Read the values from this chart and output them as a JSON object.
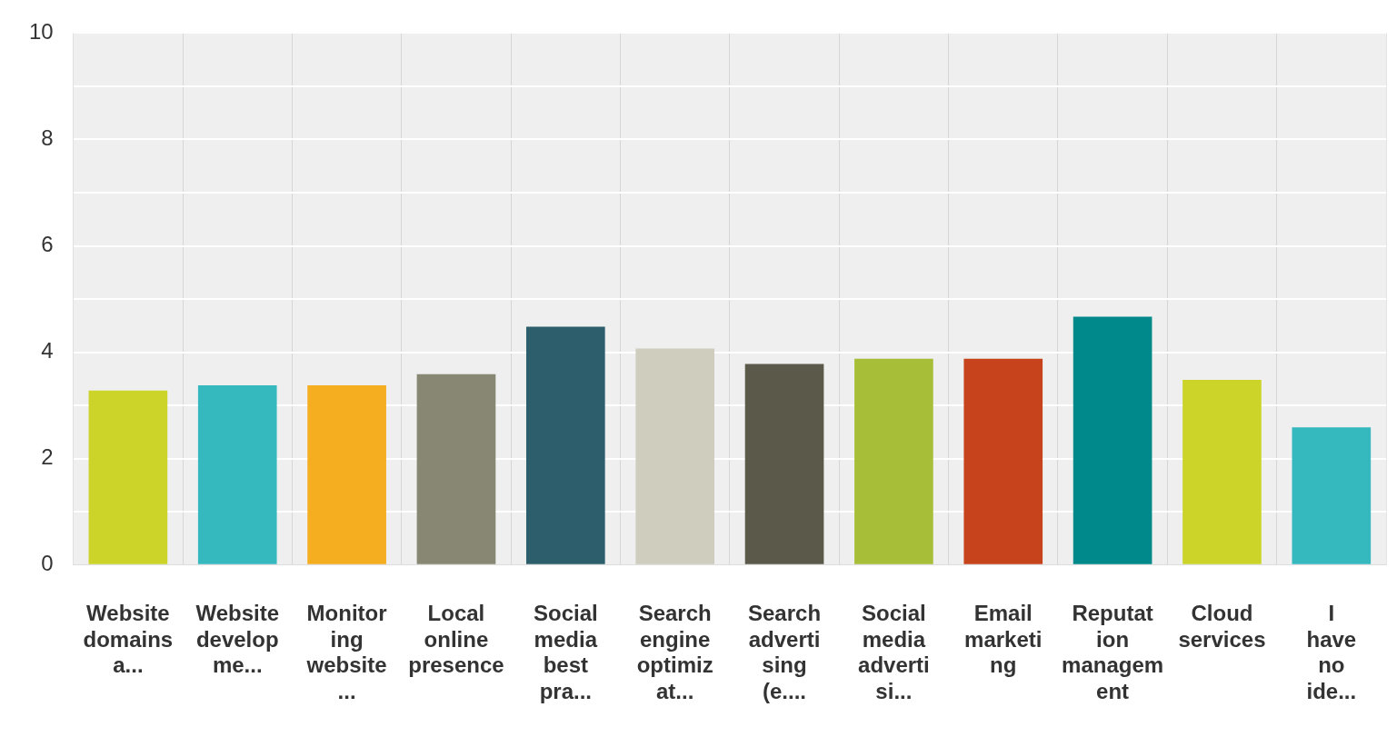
{
  "chart_data": {
    "type": "bar",
    "categories": [
      "Website domains a...",
      "Website developme...",
      "Monitoring website...",
      "Local online presence",
      "Social media best pra...",
      "Search engine optimizat...",
      "Search advertising (e....",
      "Social media advertisi...",
      "Email marketing",
      "Reputation management",
      "Cloud services",
      "I have no ide..."
    ],
    "values": [
      3.28,
      3.38,
      3.38,
      3.59,
      4.48,
      4.07,
      3.78,
      3.88,
      3.88,
      4.67,
      3.48,
      2.59
    ],
    "colors": [
      "#ccd42a",
      "#35b9be",
      "#f4ae1f",
      "#878773",
      "#2d5e6c",
      "#cfcdbe",
      "#5b5a4a",
      "#a7be38",
      "#c6431c",
      "#00898a",
      "#ccd42a",
      "#35b9be"
    ],
    "ylim": [
      0,
      10
    ],
    "yticks": [
      0,
      {
        "value": 1,
        "label": null
      },
      2,
      {
        "value": 3,
        "label": null
      },
      4,
      {
        "value": 5,
        "label": null
      },
      6,
      {
        "value": 7,
        "label": null
      },
      8,
      {
        "value": 9,
        "label": null
      },
      10
    ],
    "grid": true,
    "legend": false
  }
}
